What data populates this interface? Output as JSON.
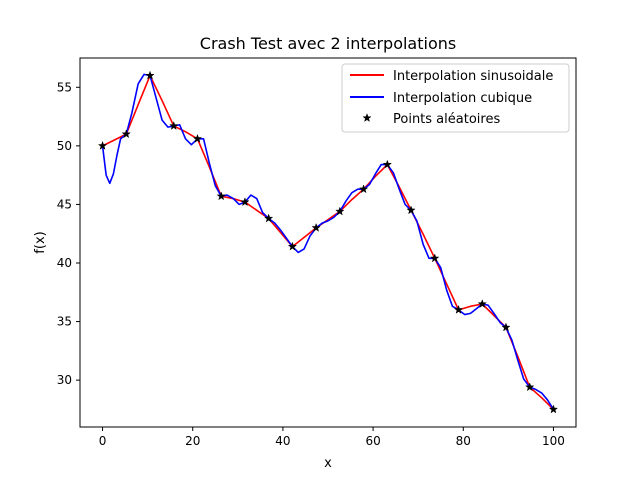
{
  "chart_data": {
    "type": "line",
    "title": "Crash Test avec 2 interpolations",
    "xlabel": "x",
    "ylabel": "f(x)",
    "xlim": [
      -5,
      105
    ],
    "ylim": [
      26.0,
      57.5
    ],
    "xticks": [
      0,
      20,
      40,
      60,
      80,
      100
    ],
    "xtick_labels": [
      "0",
      "20",
      "40",
      "60",
      "80",
      "100"
    ],
    "yticks": [
      30,
      35,
      40,
      45,
      50,
      55
    ],
    "ytick_labels": [
      "30",
      "35",
      "40",
      "45",
      "50",
      "55"
    ],
    "grid": false,
    "legend_position": "top-right",
    "points": {
      "name": "Points aléatoires",
      "x": [
        0,
        5.26,
        10.53,
        15.79,
        21.05,
        26.32,
        31.58,
        36.84,
        42.11,
        47.37,
        52.63,
        57.89,
        63.16,
        68.42,
        73.68,
        78.95,
        84.21,
        89.47,
        94.74,
        100
      ],
      "y": [
        50.0,
        51.0,
        56.0,
        51.7,
        50.6,
        45.7,
        45.2,
        43.8,
        41.4,
        43.0,
        44.4,
        46.3,
        48.4,
        44.5,
        40.4,
        36.0,
        36.5,
        34.5,
        29.4,
        27.5
      ],
      "color": "#000000",
      "marker": "star"
    },
    "series": [
      {
        "name": "Interpolation sinusoidale",
        "color": "#ff0000",
        "x": [
          0,
          2.63,
          5.26,
          7.89,
          10.53,
          13.16,
          15.79,
          18.42,
          21.05,
          23.68,
          26.32,
          28.95,
          31.58,
          34.21,
          36.84,
          39.47,
          42.11,
          44.74,
          47.37,
          50.0,
          52.63,
          55.26,
          57.89,
          60.53,
          63.16,
          65.79,
          68.42,
          71.05,
          73.68,
          76.32,
          78.95,
          81.58,
          84.21,
          86.84,
          89.47,
          92.11,
          94.74,
          97.37,
          100
        ],
        "y": [
          50.0,
          50.5,
          51.0,
          53.5,
          56.0,
          53.9,
          51.7,
          51.2,
          50.6,
          48.2,
          45.7,
          45.5,
          45.2,
          44.5,
          43.8,
          42.6,
          41.4,
          42.2,
          43.0,
          43.7,
          44.4,
          45.4,
          46.3,
          47.4,
          48.4,
          46.5,
          44.5,
          42.5,
          40.4,
          38.2,
          36.0,
          36.3,
          36.5,
          35.5,
          34.5,
          32.0,
          29.4,
          28.5,
          27.5
        ]
      },
      {
        "name": "Interpolation cubique",
        "color": "#0000ff",
        "x": [
          0,
          0.8,
          1.6,
          2.4,
          3.2,
          4.0,
          5.26,
          6.5,
          7.9,
          9.2,
          10.53,
          11.8,
          13.2,
          14.5,
          15.79,
          17.1,
          18.4,
          19.7,
          21.05,
          22.4,
          23.7,
          25.0,
          26.32,
          27.6,
          29.0,
          30.3,
          31.58,
          32.9,
          34.2,
          35.5,
          36.84,
          38.2,
          39.5,
          40.8,
          42.11,
          43.4,
          44.7,
          46.0,
          47.37,
          48.7,
          50.0,
          51.3,
          52.63,
          54.0,
          55.3,
          56.6,
          57.89,
          59.2,
          60.5,
          61.8,
          63.16,
          64.5,
          65.8,
          67.1,
          68.42,
          69.7,
          71.1,
          72.4,
          73.68,
          75.0,
          76.3,
          77.6,
          78.95,
          80.3,
          81.6,
          82.9,
          84.21,
          85.5,
          86.8,
          88.2,
          89.47,
          90.8,
          92.1,
          93.4,
          94.74,
          96.1,
          97.4,
          98.7,
          100
        ],
        "y": [
          50.0,
          47.5,
          46.8,
          47.6,
          49.2,
          50.6,
          51.0,
          52.8,
          55.3,
          56.1,
          56.0,
          54.2,
          52.2,
          51.6,
          51.7,
          51.8,
          50.6,
          50.1,
          50.6,
          50.6,
          48.5,
          46.6,
          45.7,
          45.8,
          45.5,
          45.0,
          45.2,
          45.8,
          45.5,
          44.3,
          43.8,
          43.4,
          42.8,
          42.1,
          41.4,
          40.9,
          41.2,
          42.3,
          43.0,
          43.4,
          43.6,
          43.9,
          44.4,
          45.3,
          46.0,
          46.3,
          46.3,
          46.7,
          47.6,
          48.4,
          48.4,
          47.7,
          46.3,
          45.0,
          44.5,
          43.6,
          41.6,
          40.4,
          40.4,
          39.6,
          37.7,
          36.3,
          36.0,
          35.6,
          35.7,
          36.1,
          36.5,
          36.4,
          35.7,
          34.9,
          34.5,
          33.4,
          31.7,
          30.1,
          29.4,
          29.2,
          28.9,
          28.3,
          27.5
        ]
      }
    ]
  }
}
